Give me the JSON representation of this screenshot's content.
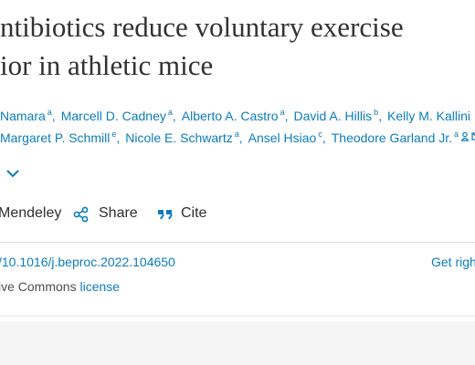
{
  "article": {
    "title_lines": [
      "ntibiotics reduce voluntary exercise",
      "ior in athletic mice"
    ],
    "author_separator": ",",
    "author_lines": [
      [
        {
          "name": "Namara",
          "sup": "a"
        },
        {
          "name": "Marcell D. Cadney",
          "sup": "a"
        },
        {
          "name": "Alberto A. Castro",
          "sup": "a"
        },
        {
          "name": "David A. Hillis",
          "sup": "b"
        },
        {
          "name": "Kelly M. Kallini",
          "sup": null
        }
      ],
      [
        {
          "name": "Margaret P. Schmill",
          "sup": "e"
        },
        {
          "name": "Nicole E. Schwartz",
          "sup": "a"
        },
        {
          "name": "Ansel Hsiao",
          "sup": "c"
        },
        {
          "name": "Theodore Garland Jr.",
          "sup": "a"
        }
      ]
    ],
    "actions": {
      "mendeley": "Mendeley",
      "share": "Share",
      "cite": "Cite"
    },
    "doi": "/10.1016/j.beproc.2022.104650",
    "rights_link": "Get righ",
    "license": {
      "text": "ive Commons",
      "link": "license"
    }
  }
}
